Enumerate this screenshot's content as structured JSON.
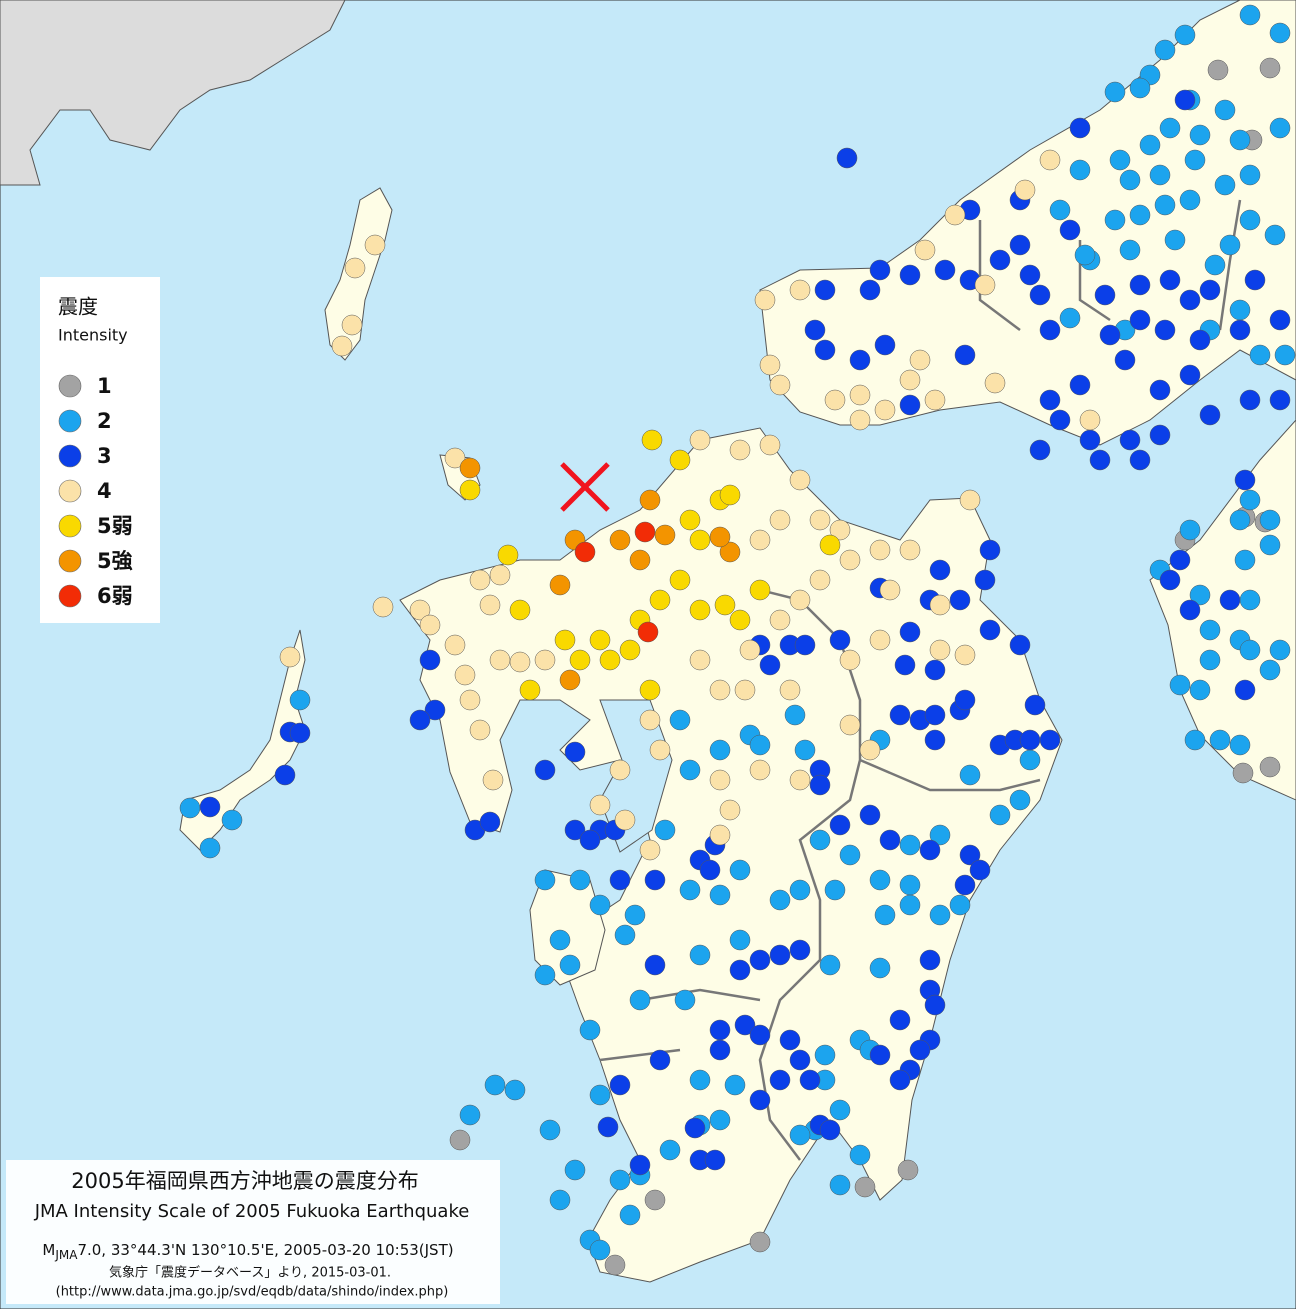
{
  "legend": {
    "title": "震度",
    "subtitle": "Intensity",
    "items": [
      {
        "label": "1",
        "color": "#a3a3a3"
      },
      {
        "label": "2",
        "color": "#1ca4ee"
      },
      {
        "label": "3",
        "color": "#0b3fe8"
      },
      {
        "label": "4",
        "color": "#fbe2a9"
      },
      {
        "label": "5弱",
        "color": "#f9d900"
      },
      {
        "label": "5強",
        "color": "#f39400"
      },
      {
        "label": "6弱",
        "color": "#f22c06"
      }
    ]
  },
  "caption": {
    "title": "2005年福岡県西方沖地震の震度分布",
    "subtitle": "JMA Intensity Scale of 2005 Fukuoka Earthquake",
    "magnitude_symbol": "M",
    "magnitude_subscript": "JMA",
    "details": "7.0, 33°44.3'N 130°10.5'E, 2005-03-20 10:53(JST)",
    "source": "気象庁「震度データベース」より, 2015-03-01.",
    "url": "(http://www.data.jma.go.jp/svd/eqdb/data/shindo/index.php)"
  }
}
